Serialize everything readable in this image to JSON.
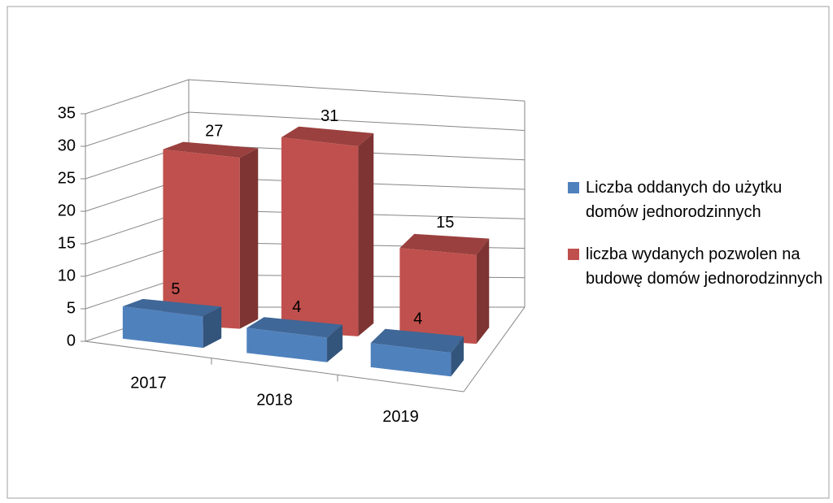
{
  "chart_data": {
    "type": "bar3d",
    "categories": [
      "2017",
      "2018",
      "2019"
    ],
    "series": [
      {
        "name": "Liczba oddanych do użytku domów jednorodzinnych",
        "color": "#4f81bd",
        "values": [
          5,
          4,
          4
        ]
      },
      {
        "name": "liczba wydanych pozwolen na budowę domów jednorodzinnych",
        "color": "#c0504d",
        "values": [
          27,
          31,
          15
        ]
      }
    ],
    "ylim": [
      0,
      35
    ],
    "yticks": [
      0,
      5,
      10,
      15,
      20,
      25,
      30,
      35
    ],
    "grid": true,
    "legend": "right"
  }
}
